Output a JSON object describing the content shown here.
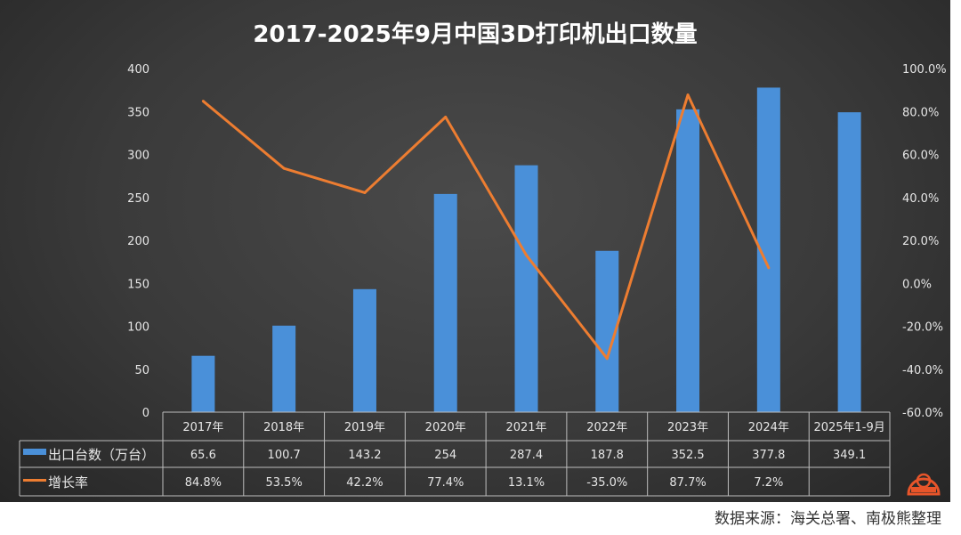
{
  "chart_data": {
    "type": "bar",
    "title": "2017-2025年9月中国3D打印机出口数量",
    "categories": [
      "2017年",
      "2018年",
      "2019年",
      "2020年",
      "2021年",
      "2022年",
      "2023年",
      "2024年",
      "2025年1-9月"
    ],
    "series": [
      {
        "name": "出口台数（万台）",
        "type": "bar",
        "axis": "left",
        "color": "#4a90d9",
        "values": [
          65.6,
          100.7,
          143.2,
          254,
          287.4,
          187.8,
          352.5,
          377.8,
          349.1
        ],
        "labels": [
          "65.6",
          "100.7",
          "143.2",
          "254",
          "287.4",
          "187.8",
          "352.5",
          "377.8",
          "349.1"
        ]
      },
      {
        "name": "增长率",
        "type": "line",
        "axis": "right",
        "color": "#ed7d31",
        "values": [
          84.8,
          53.5,
          42.2,
          77.4,
          13.1,
          -35.0,
          87.7,
          7.2,
          null
        ],
        "labels": [
          "84.8%",
          "53.5%",
          "42.2%",
          "77.4%",
          "13.1%",
          "-35.0%",
          "87.7%",
          "7.2%",
          ""
        ]
      }
    ],
    "left_axis": {
      "min": 0,
      "max": 400,
      "step": 50,
      "ticks": [
        "0",
        "50",
        "100",
        "150",
        "200",
        "250",
        "300",
        "350",
        "400"
      ]
    },
    "right_axis": {
      "min": -60,
      "max": 100,
      "step": 20,
      "ticks": [
        "-60.0%",
        "-40.0%",
        "-20.0%",
        "0.0%",
        "20.0%",
        "40.0%",
        "60.0%",
        "80.0%",
        "100.0%"
      ]
    },
    "grid": false,
    "legend": "data-table"
  },
  "source": "数据来源：海关总署、南极熊整理",
  "logo_text": "南极熊"
}
